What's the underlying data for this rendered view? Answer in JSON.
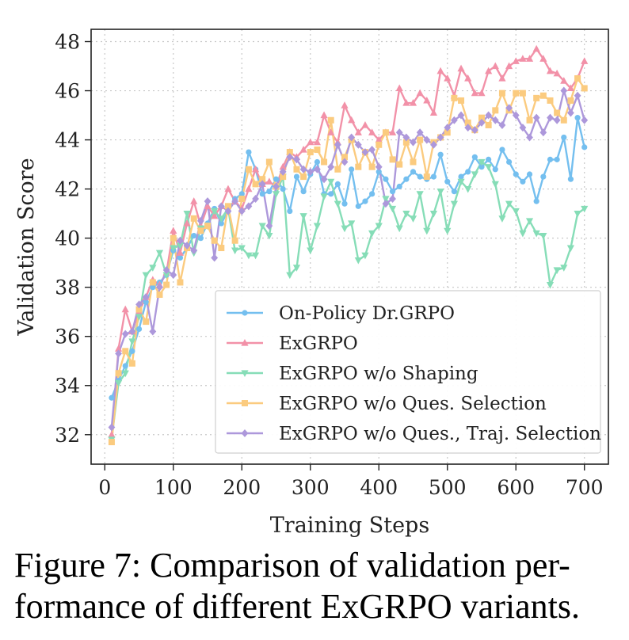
{
  "chart_data": {
    "type": "line",
    "title": "",
    "xlabel": "Training Steps",
    "ylabel": "Validation Score",
    "xlim": [
      -20,
      735
    ],
    "ylim": [
      30.8,
      48.5
    ],
    "xticks": [
      0,
      100,
      200,
      300,
      400,
      500,
      600,
      700
    ],
    "yticks": [
      32,
      34,
      36,
      38,
      40,
      42,
      44,
      46,
      48
    ],
    "grid": true,
    "legend_position": "lower-right",
    "series": [
      {
        "name": "On-Policy Dr.GRPO",
        "color": "#74bfef",
        "marker": "circle",
        "x": [
          10,
          20,
          30,
          40,
          50,
          60,
          70,
          80,
          90,
          100,
          110,
          120,
          130,
          140,
          150,
          160,
          170,
          180,
          190,
          200,
          210,
          220,
          230,
          240,
          250,
          260,
          270,
          280,
          290,
          300,
          310,
          320,
          330,
          340,
          350,
          360,
          370,
          380,
          390,
          400,
          410,
          420,
          430,
          440,
          450,
          460,
          470,
          480,
          490,
          500,
          510,
          520,
          530,
          540,
          550,
          560,
          570,
          580,
          590,
          600,
          610,
          620,
          630,
          640,
          650,
          660,
          670,
          680,
          690,
          700
        ],
        "values": [
          33.5,
          34.2,
          34.8,
          35.4,
          36.3,
          37.4,
          38.0,
          38.2,
          38.5,
          39.5,
          39.2,
          39.6,
          40.1,
          40.0,
          40.6,
          41.2,
          40.6,
          41.1,
          41.6,
          41.8,
          43.5,
          42.8,
          41.8,
          41.9,
          42.4,
          42.0,
          41.1,
          42.5,
          41.9,
          42.6,
          43.1,
          41.8,
          41.8,
          42.2,
          41.4,
          42.8,
          41.3,
          41.5,
          41.8,
          42.7,
          42.4,
          41.9,
          42.1,
          42.4,
          42.7,
          42.5,
          42.4,
          42.5,
          43.4,
          42.3,
          41.9,
          42.5,
          42.7,
          43.3,
          42.9,
          43.2,
          42.8,
          43.6,
          43.1,
          42.6,
          42.3,
          42.6,
          41.5,
          42.5,
          43.2,
          43.2,
          44.1,
          42.4,
          44.9,
          43.7
        ]
      },
      {
        "name": "ExGRPO",
        "color": "#f291a8",
        "marker": "triangle-up",
        "x": [
          10,
          20,
          30,
          40,
          50,
          60,
          70,
          80,
          90,
          100,
          110,
          120,
          130,
          140,
          150,
          160,
          170,
          180,
          190,
          200,
          210,
          220,
          230,
          240,
          250,
          260,
          270,
          280,
          290,
          300,
          310,
          320,
          330,
          340,
          350,
          360,
          370,
          380,
          390,
          400,
          410,
          420,
          430,
          440,
          450,
          460,
          470,
          480,
          490,
          500,
          510,
          520,
          530,
          540,
          550,
          560,
          570,
          580,
          590,
          600,
          610,
          620,
          630,
          640,
          650,
          660,
          670,
          680,
          690,
          700
        ],
        "values": [
          32.0,
          35.5,
          37.1,
          36.2,
          37.0,
          37.6,
          38.3,
          38.1,
          38.6,
          40.3,
          39.4,
          40.6,
          41.5,
          40.5,
          41.3,
          40.9,
          41.3,
          42.0,
          41.5,
          41.2,
          42.0,
          42.8,
          42.2,
          42.3,
          42.1,
          42.9,
          43.5,
          43.3,
          43.6,
          43.9,
          43.9,
          45.0,
          44.3,
          43.9,
          45.4,
          44.8,
          44.3,
          44.6,
          44.3,
          44.0,
          44.3,
          44.3,
          46.1,
          45.5,
          45.5,
          45.9,
          45.6,
          45.1,
          46.8,
          46.5,
          45.8,
          46.9,
          46.5,
          45.9,
          45.9,
          46.8,
          47.0,
          46.5,
          47.0,
          47.2,
          47.3,
          47.3,
          47.7,
          47.3,
          46.8,
          46.7,
          46.4,
          46.1,
          46.5,
          47.2
        ]
      },
      {
        "name": "ExGRPO w/o Shaping",
        "color": "#86ddb7",
        "marker": "triangle-down",
        "x": [
          10,
          20,
          30,
          40,
          50,
          60,
          70,
          80,
          90,
          100,
          110,
          120,
          130,
          140,
          150,
          160,
          170,
          180,
          190,
          200,
          210,
          220,
          230,
          240,
          250,
          260,
          270,
          280,
          290,
          300,
          310,
          320,
          330,
          340,
          350,
          360,
          370,
          380,
          390,
          400,
          410,
          420,
          430,
          440,
          450,
          460,
          470,
          480,
          490,
          500,
          510,
          520,
          530,
          540,
          550,
          560,
          570,
          580,
          590,
          600,
          610,
          620,
          630,
          640,
          650,
          660,
          670,
          680,
          690,
          700
        ],
        "values": [
          31.8,
          34.1,
          34.5,
          35.8,
          36.8,
          38.5,
          38.8,
          39.4,
          38.5,
          39.6,
          39.7,
          41.0,
          39.4,
          40.4,
          40.5,
          41.1,
          40.8,
          41.2,
          39.5,
          39.6,
          39.3,
          39.3,
          40.5,
          40.1,
          41.8,
          42.5,
          38.5,
          38.8,
          40.9,
          39.5,
          40.5,
          41.7,
          42.3,
          41.4,
          40.4,
          40.6,
          39.1,
          39.3,
          40.2,
          40.5,
          41.6,
          41.2,
          40.4,
          41.0,
          40.8,
          41.8,
          40.3,
          41.0,
          41.9,
          40.3,
          41.4,
          42.3,
          42.0,
          42.6,
          43.1,
          42.9,
          42.2,
          40.8,
          41.4,
          41.1,
          40.2,
          40.7,
          40.2,
          40.1,
          38.1,
          38.7,
          38.8,
          39.6,
          41.0,
          41.2
        ]
      },
      {
        "name": "ExGRPO w/o Ques. Selection",
        "color": "#fbcb7f",
        "marker": "square",
        "x": [
          10,
          20,
          30,
          40,
          50,
          60,
          70,
          80,
          90,
          100,
          110,
          120,
          130,
          140,
          150,
          160,
          170,
          180,
          190,
          200,
          210,
          220,
          230,
          240,
          250,
          260,
          270,
          280,
          290,
          300,
          310,
          320,
          330,
          340,
          350,
          360,
          370,
          380,
          390,
          400,
          410,
          420,
          430,
          440,
          450,
          460,
          470,
          480,
          490,
          500,
          510,
          520,
          530,
          540,
          550,
          560,
          570,
          580,
          590,
          600,
          610,
          620,
          630,
          640,
          650,
          660,
          670,
          680,
          690,
          700
        ],
        "values": [
          31.7,
          34.5,
          35.4,
          34.9,
          37.1,
          36.6,
          38.2,
          37.7,
          38.1,
          40.0,
          38.2,
          39.6,
          40.8,
          40.3,
          40.5,
          39.9,
          39.6,
          41.3,
          39.9,
          41.6,
          42.8,
          42.2,
          42.4,
          43.1,
          42.1,
          42.5,
          43.5,
          42.8,
          42.5,
          43.5,
          43.6,
          43.1,
          44.8,
          42.8,
          43.3,
          44.0,
          42.9,
          43.5,
          42.9,
          43.8,
          44.3,
          43.2,
          43.0,
          43.9,
          43.1,
          44.0,
          42.5,
          43.9,
          44.1,
          44.3,
          45.7,
          45.6,
          44.7,
          44.4,
          44.9,
          44.6,
          45.2,
          45.9,
          45.2,
          45.9,
          45.9,
          44.8,
          45.7,
          45.8,
          45.6,
          45.1,
          44.8,
          45.6,
          46.5,
          46.1
        ]
      },
      {
        "name": "ExGRPO w/o Ques., Traj. Selection",
        "color": "#ad98db",
        "marker": "diamond",
        "x": [
          10,
          20,
          30,
          40,
          50,
          60,
          70,
          80,
          90,
          100,
          110,
          120,
          130,
          140,
          150,
          160,
          170,
          180,
          190,
          200,
          210,
          220,
          230,
          240,
          250,
          260,
          270,
          280,
          290,
          300,
          310,
          320,
          330,
          340,
          350,
          360,
          370,
          380,
          390,
          400,
          410,
          420,
          430,
          440,
          450,
          460,
          470,
          480,
          490,
          500,
          510,
          520,
          530,
          540,
          550,
          560,
          570,
          580,
          590,
          600,
          610,
          620,
          630,
          640,
          650,
          660,
          670,
          680,
          690,
          700
        ],
        "values": [
          32.3,
          35.3,
          36.1,
          36.2,
          37.3,
          37.6,
          36.2,
          38.0,
          38.7,
          38.5,
          39.9,
          39.7,
          39.5,
          40.7,
          41.5,
          39.2,
          41.3,
          41.1,
          41.5,
          41.1,
          41.3,
          41.6,
          42.2,
          40.5,
          42.1,
          42.7,
          43.3,
          43.2,
          42.8,
          42.7,
          42.8,
          42.4,
          42.9,
          43.8,
          43.1,
          44.1,
          43.8,
          43.5,
          43.6,
          42.9,
          41.4,
          41.6,
          44.3,
          44.1,
          43.9,
          44.3,
          44.0,
          43.8,
          44.1,
          44.5,
          44.8,
          45.0,
          44.5,
          44.4,
          44.7,
          45.0,
          44.8,
          44.6,
          45.3,
          45.0,
          44.5,
          44.1,
          44.9,
          44.3,
          44.9,
          44.8,
          46.0,
          45.1,
          45.8,
          44.8
        ]
      }
    ]
  },
  "caption": {
    "line1": "Figure 7: Comparison of validation per-",
    "line2": "formance of different ExGRPO variants."
  }
}
